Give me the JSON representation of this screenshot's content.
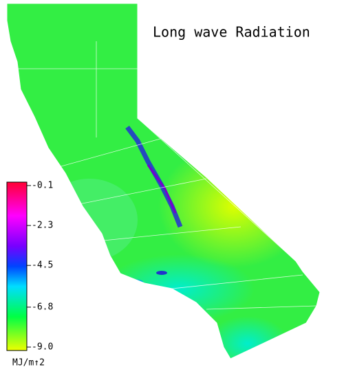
{
  "title": "Long wave Radiation",
  "legend": {
    "range": [
      -9.0,
      -0.1
    ],
    "ticks": [
      {
        "value": -0.1,
        "label": "-0.1"
      },
      {
        "value": -2.3,
        "label": "-2.3"
      },
      {
        "value": -4.5,
        "label": "-4.5"
      },
      {
        "value": -6.8,
        "label": "-6.8"
      },
      {
        "value": -9.0,
        "label": "-9.0"
      }
    ],
    "unit": "MJ/m↑2"
  }
}
